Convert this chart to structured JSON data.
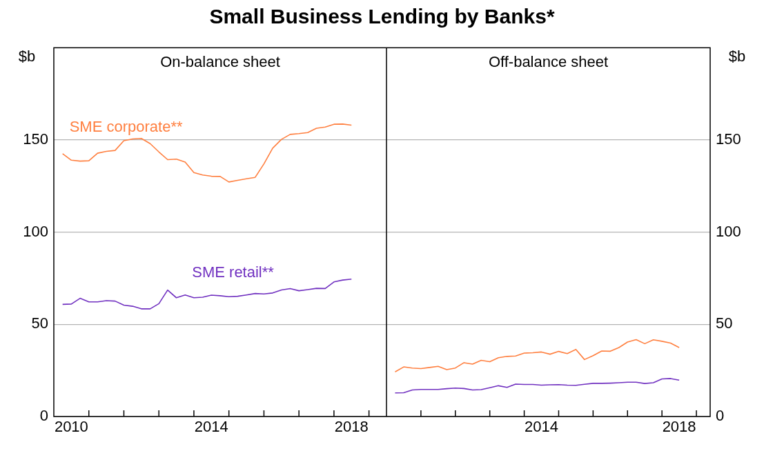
{
  "chart_data": [
    {
      "type": "line",
      "title": "Small Business Lending by Banks*",
      "subtitle": "On-balance sheet",
      "ylabel": "$b",
      "x": [
        2010.25,
        2010.5,
        2010.75,
        2011,
        2011.25,
        2011.5,
        2011.75,
        2012,
        2012.25,
        2012.5,
        2012.75,
        2013,
        2013.25,
        2013.5,
        2013.75,
        2014,
        2014.25,
        2014.5,
        2014.75,
        2015,
        2015.25,
        2015.5,
        2015.75,
        2016,
        2016.25,
        2016.5,
        2016.75,
        2017,
        2017.25,
        2017.5,
        2017.75,
        2018,
        2018.25,
        2018.5
      ],
      "series": [
        {
          "name": "SME corporate**",
          "color": "#ff7f3f",
          "values": [
            142.5,
            139,
            138.5,
            138.7,
            142.8,
            143.8,
            144.3,
            149.6,
            150.5,
            150.8,
            148,
            143.5,
            139.3,
            139.6,
            138,
            132.3,
            131,
            130.3,
            130.2,
            127.2,
            128.1,
            128.9,
            129.7,
            137,
            145.5,
            150.3,
            153,
            153.4,
            154,
            156.3,
            157,
            158.5,
            158.6,
            158
          ]
        },
        {
          "name": "SME retail**",
          "color": "#7030c0",
          "values": [
            60.8,
            61,
            64.1,
            62.2,
            62.2,
            62.8,
            62.6,
            60.4,
            59.8,
            58.4,
            58.4,
            61.2,
            68.6,
            64.4,
            65.9,
            64.4,
            64.7,
            65.8,
            65.5,
            65,
            65.2,
            65.9,
            66.7,
            66.5,
            67,
            68.6,
            69.4,
            68.2,
            68.8,
            69.5,
            69.4,
            73,
            74,
            74.5
          ]
        }
      ],
      "xlim": [
        2010,
        2019.5
      ],
      "xticks": [
        {
          "value": 2010.5,
          "label": "2010"
        },
        {
          "value": 2011,
          "label": null
        },
        {
          "value": 2012,
          "label": null
        },
        {
          "value": 2013,
          "label": null
        },
        {
          "value": 2014,
          "label": null
        },
        {
          "value": 2014.5,
          "label": "2014"
        },
        {
          "value": 2015,
          "label": null
        },
        {
          "value": 2016,
          "label": null
        },
        {
          "value": 2017,
          "label": null
        },
        {
          "value": 2018,
          "label": null
        },
        {
          "value": 2018.5,
          "label": "2018"
        },
        {
          "value": 2019,
          "label": null
        }
      ],
      "ylim": [
        0,
        200
      ],
      "yticks": [
        0,
        50,
        100,
        150
      ],
      "grid": "y",
      "legend": false
    },
    {
      "type": "line",
      "subtitle": "Off-balance sheet",
      "ylabel": "$b",
      "x": [
        2010.25,
        2010.5,
        2010.75,
        2011,
        2011.25,
        2011.5,
        2011.75,
        2012,
        2012.25,
        2012.5,
        2012.75,
        2013,
        2013.25,
        2013.5,
        2013.75,
        2014,
        2014.25,
        2014.5,
        2014.75,
        2015,
        2015.25,
        2015.5,
        2015.75,
        2016,
        2016.25,
        2016.5,
        2016.75,
        2017,
        2017.25,
        2017.5,
        2017.75,
        2018,
        2018.25,
        2018.5
      ],
      "series": [
        {
          "color": "#ff7f3f",
          "values": [
            24.2,
            26.9,
            26.3,
            26,
            26.6,
            27.2,
            25.4,
            26.3,
            29.2,
            28.4,
            30.5,
            29.7,
            31.9,
            32.6,
            32.8,
            34.4,
            34.6,
            35,
            33.8,
            35.3,
            34.1,
            36.4,
            30.9,
            33,
            35.5,
            35.4,
            37.4,
            40.4,
            41.7,
            39.5,
            41.6,
            40.8,
            39.8,
            37.4
          ]
        },
        {
          "color": "#7030c0",
          "values": [
            12.8,
            12.9,
            14.4,
            14.7,
            14.7,
            14.7,
            15.1,
            15.4,
            15.2,
            14.4,
            14.6,
            15.6,
            16.7,
            15.8,
            17.6,
            17.4,
            17.4,
            17,
            17.2,
            17.3,
            17,
            16.9,
            17.5,
            18,
            18,
            18.1,
            18.3,
            18.6,
            18.6,
            17.9,
            18.3,
            20.4,
            20.6,
            19.7
          ]
        }
      ],
      "xlim": [
        2010,
        2019.4
      ],
      "xticks": [
        {
          "value": 2011,
          "label": null
        },
        {
          "value": 2012,
          "label": null
        },
        {
          "value": 2013,
          "label": null
        },
        {
          "value": 2014,
          "label": null
        },
        {
          "value": 2014.5,
          "label": "2014"
        },
        {
          "value": 2015,
          "label": null
        },
        {
          "value": 2016,
          "label": null
        },
        {
          "value": 2017,
          "label": null
        },
        {
          "value": 2018,
          "label": null
        },
        {
          "value": 2018.5,
          "label": "2018"
        },
        {
          "value": 2019,
          "label": null
        }
      ],
      "ylim": [
        0,
        200
      ],
      "yticks": [
        0,
        50,
        100,
        150
      ],
      "grid": "y",
      "legend": false
    }
  ]
}
